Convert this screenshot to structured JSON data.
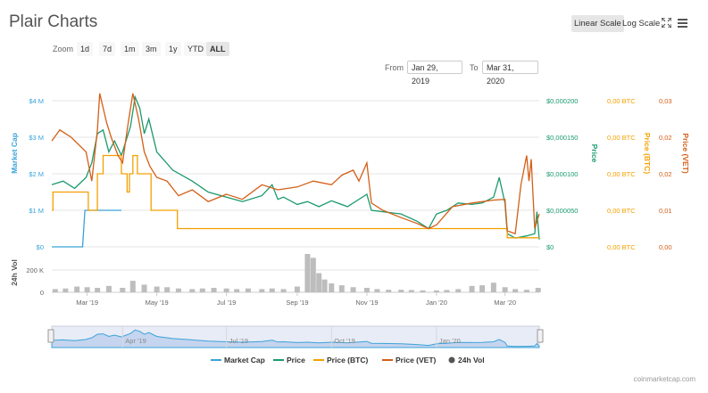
{
  "header": {
    "title": "Plair Charts",
    "linear_scale": "Linear Scale",
    "log_scale": "Log Scale"
  },
  "icons": {
    "fullscreen": "fullscreen-icon",
    "menu": "menu-icon"
  },
  "zoom": {
    "label": "Zoom",
    "buttons": [
      "1d",
      "7d",
      "1m",
      "3m",
      "1y",
      "YTD",
      "ALL"
    ],
    "active": "ALL"
  },
  "range": {
    "from_label": "From",
    "from": "Jan 29, 2019",
    "to_label": "To",
    "to": "Mar 31, 2020"
  },
  "credit": "coinmarketcap.com",
  "colors": {
    "market_cap": "#3aa3d8",
    "price": "#1a9a6c",
    "price_btc": "#f4a000",
    "price_vet": "#d35f17",
    "volume": "#555555"
  },
  "chart_data": {
    "type": "line",
    "x_ticks": [
      "Mar '19",
      "May '19",
      "Jul '19",
      "Sep '19",
      "Nov '19",
      "Jan '20",
      "Mar '20"
    ],
    "navigator_ticks": [
      "Apr '19",
      "Jul '19",
      "Oct '19",
      "Jan '20"
    ],
    "axes": {
      "market_cap": {
        "label": "Market Cap",
        "ticks": [
          "$4 M",
          "$3 M",
          "$2 M",
          "$1 M",
          "$0"
        ],
        "range": [
          0,
          4000000
        ]
      },
      "price": {
        "label": "Price",
        "ticks": [
          "$0,000200",
          "$0,000150",
          "$0,000100",
          "$0,000050",
          "$0"
        ],
        "range": [
          0,
          0.0002
        ]
      },
      "price_btc": {
        "label": "Price (BTC)",
        "ticks": [
          "0,00 BTC",
          "0,00 BTC",
          "0,00 BTC",
          "0,00 BTC",
          "0,00 BTC"
        ]
      },
      "price_vet": {
        "label": "Price (VET)",
        "ticks": [
          "0,03",
          "0,02",
          "0,02",
          "0,01",
          "0,00"
        ],
        "range": [
          0,
          0.03
        ]
      },
      "volume": {
        "label": "24h Vol",
        "ticks": [
          "200 K",
          "0"
        ],
        "range": [
          0,
          300000
        ]
      }
    },
    "series": [
      {
        "name": "Market Cap",
        "key": "market_cap",
        "axis": "market_cap",
        "style": "none",
        "x": [
          "2019-01-29",
          "2019-02-25",
          "2019-02-27",
          "2019-03-31"
        ],
        "values": [
          0,
          0,
          1000000,
          1000000
        ]
      },
      {
        "name": "Price",
        "key": "price",
        "axis": "price",
        "x": [
          "2019-01-29",
          "2019-02-08",
          "2019-02-18",
          "2019-02-28",
          "2019-03-05",
          "2019-03-10",
          "2019-03-15",
          "2019-03-20",
          "2019-03-25",
          "2019-03-31",
          "2019-04-08",
          "2019-04-12",
          "2019-04-16",
          "2019-04-20",
          "2019-04-24",
          "2019-05-01",
          "2019-05-15",
          "2019-06-01",
          "2019-06-15",
          "2019-07-01",
          "2019-07-15",
          "2019-08-01",
          "2019-08-10",
          "2019-08-15",
          "2019-08-20",
          "2019-09-01",
          "2019-09-10",
          "2019-09-20",
          "2019-10-01",
          "2019-10-15",
          "2019-11-01",
          "2019-11-05",
          "2019-11-15",
          "2019-12-01",
          "2019-12-15",
          "2019-12-25",
          "2020-01-01",
          "2020-01-10",
          "2020-01-20",
          "2020-02-01",
          "2020-02-10",
          "2020-02-20",
          "2020-02-25",
          "2020-03-01",
          "2020-03-03",
          "2020-03-10",
          "2020-03-20",
          "2020-03-27",
          "2020-03-29",
          "2020-03-31"
        ],
        "values": [
          8.5e-05,
          9e-05,
          8e-05,
          9.5e-05,
          0.000115,
          0.000155,
          0.00016,
          0.00013,
          0.000145,
          0.000125,
          0.000165,
          0.000205,
          0.00019,
          0.000155,
          0.000175,
          0.00013,
          0.000105,
          9e-05,
          7.5e-05,
          6.8e-05,
          6.2e-05,
          7e-05,
          8.5e-05,
          6.5e-05,
          6.8e-05,
          5.8e-05,
          6.2e-05,
          5.5e-05,
          6.3e-05,
          5.5e-05,
          7.2e-05,
          5e-05,
          4.8e-05,
          4.5e-05,
          3.5e-05,
          2.5e-05,
          4.5e-05,
          5e-05,
          6e-05,
          5.8e-05,
          6e-05,
          6.8e-05,
          9.5e-05,
          6e-05,
          1.8e-05,
          1.2e-05,
          1.5e-05,
          1.8e-05,
          4.8e-05,
          1e-05
        ]
      },
      {
        "name": "Price (BTC)",
        "key": "price_btc",
        "axis": "price",
        "x": [
          "2019-01-29",
          "2019-01-30",
          "2019-02-10",
          "2019-02-27",
          "2019-03-02",
          "2019-03-10",
          "2019-03-15",
          "2019-03-31",
          "2019-04-05",
          "2019-04-07",
          "2019-04-10",
          "2019-04-13",
          "2019-04-14",
          "2019-04-25",
          "2019-04-26",
          "2019-05-18",
          "2019-05-19",
          "2020-03-01",
          "2020-03-03",
          "2020-03-31"
        ],
        "values": [
          5e-05,
          7.5e-05,
          7.5e-05,
          7.5e-05,
          5e-05,
          0.0001,
          0.000125,
          0.0001,
          7.5e-05,
          0.0001,
          0.000125,
          0.000125,
          0.0001,
          0.0001,
          5e-05,
          5e-05,
          2.5e-05,
          2.5e-05,
          1.25e-05,
          1.25e-05
        ]
      },
      {
        "name": "Price (VET)",
        "key": "price_vet",
        "axis": "price",
        "x": [
          "2019-01-29",
          "2019-02-05",
          "2019-02-15",
          "2019-02-28",
          "2019-03-05",
          "2019-03-10",
          "2019-03-12",
          "2019-03-18",
          "2019-03-22",
          "2019-03-28",
          "2019-04-01",
          "2019-04-05",
          "2019-04-10",
          "2019-04-15",
          "2019-04-20",
          "2019-04-25",
          "2019-05-01",
          "2019-05-10",
          "2019-05-20",
          "2019-06-01",
          "2019-06-15",
          "2019-07-01",
          "2019-07-15",
          "2019-08-01",
          "2019-08-15",
          "2019-09-01",
          "2019-09-15",
          "2019-10-01",
          "2019-10-10",
          "2019-10-20",
          "2019-10-25",
          "2019-11-01",
          "2019-11-05",
          "2019-11-15",
          "2019-12-01",
          "2019-12-15",
          "2019-12-25",
          "2020-01-01",
          "2020-01-15",
          "2020-02-01",
          "2020-02-20",
          "2020-03-01",
          "2020-03-03",
          "2020-03-10",
          "2020-03-15",
          "2020-03-20",
          "2020-03-22",
          "2020-03-24",
          "2020-03-27",
          "2020-03-31"
        ],
        "values": [
          0.000145,
          0.00016,
          0.00015,
          0.00013,
          9e-05,
          0.00016,
          0.00021,
          0.00017,
          0.00015,
          0.000125,
          0.000115,
          0.00016,
          0.00021,
          0.000175,
          0.00013,
          0.00011,
          9.5e-05,
          9e-05,
          7e-05,
          7.8e-05,
          6.2e-05,
          7.2e-05,
          6.5e-05,
          8.5e-05,
          7.8e-05,
          8.2e-05,
          9e-05,
          8.5e-05,
          9.8e-05,
          0.000105,
          9e-05,
          0.000115,
          6e-05,
          5e-05,
          4e-05,
          3.2e-05,
          2.5e-05,
          3e-05,
          5.5e-05,
          6e-05,
          6.4e-05,
          6.5e-05,
          2.2e-05,
          1.8e-05,
          8.5e-05,
          0.000125,
          9e-05,
          0.00012,
          2.5e-05,
          4.5e-05
        ]
      }
    ],
    "volume": {
      "name": "24h Vol",
      "x": [
        "2019-02-01",
        "2019-02-10",
        "2019-02-20",
        "2019-03-01",
        "2019-03-10",
        "2019-03-20",
        "2019-04-01",
        "2019-04-10",
        "2019-04-20",
        "2019-05-01",
        "2019-05-10",
        "2019-05-20",
        "2019-06-01",
        "2019-06-10",
        "2019-06-20",
        "2019-07-01",
        "2019-07-10",
        "2019-07-20",
        "2019-08-01",
        "2019-08-10",
        "2019-08-20",
        "2019-09-01",
        "2019-09-10",
        "2019-09-15",
        "2019-09-20",
        "2019-09-25",
        "2019-10-01",
        "2019-10-10",
        "2019-10-20",
        "2019-11-01",
        "2019-11-10",
        "2019-11-20",
        "2019-12-01",
        "2019-12-10",
        "2019-12-20",
        "2020-01-01",
        "2020-01-10",
        "2020-01-20",
        "2020-02-01",
        "2020-02-10",
        "2020-02-20",
        "2020-03-01",
        "2020-03-10",
        "2020-03-20",
        "2020-03-30"
      ],
      "values": [
        25000,
        30000,
        45000,
        40000,
        35000,
        50000,
        35000,
        90000,
        60000,
        45000,
        40000,
        30000,
        25000,
        30000,
        35000,
        30000,
        25000,
        30000,
        25000,
        30000,
        25000,
        45000,
        300000,
        270000,
        150000,
        100000,
        70000,
        55000,
        40000,
        35000,
        25000,
        20000,
        20000,
        18000,
        15000,
        15000,
        18000,
        25000,
        50000,
        55000,
        75000,
        40000,
        25000,
        20000,
        35000
      ]
    }
  }
}
